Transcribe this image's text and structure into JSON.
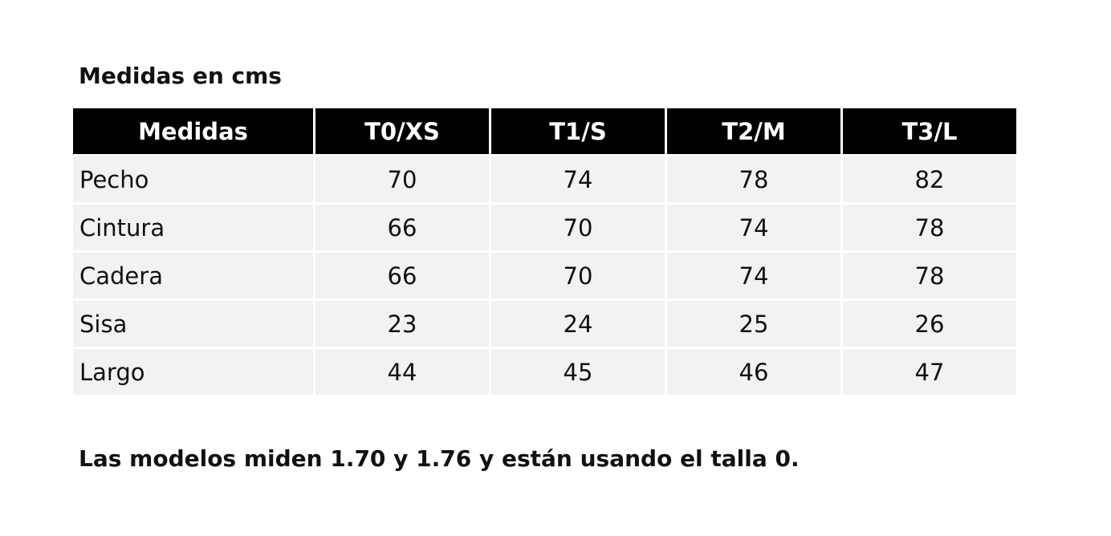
{
  "heading": "Medidas en cms",
  "table": {
    "header": [
      "Medidas",
      "T0/XS",
      "T1/S",
      "T2/M",
      "T3/L"
    ],
    "rows": [
      [
        "Pecho",
        "70",
        "74",
        "78",
        "82"
      ],
      [
        "Cintura",
        "66",
        "70",
        "74",
        "78"
      ],
      [
        "Cadera",
        "66",
        "70",
        "74",
        "78"
      ],
      [
        "Sisa",
        "23",
        "24",
        "25",
        "26"
      ],
      [
        "Largo",
        "44",
        "45",
        "46",
        "47"
      ]
    ]
  },
  "note": "Las modelos miden 1.70 y 1.76 y están usando el talla 0."
}
